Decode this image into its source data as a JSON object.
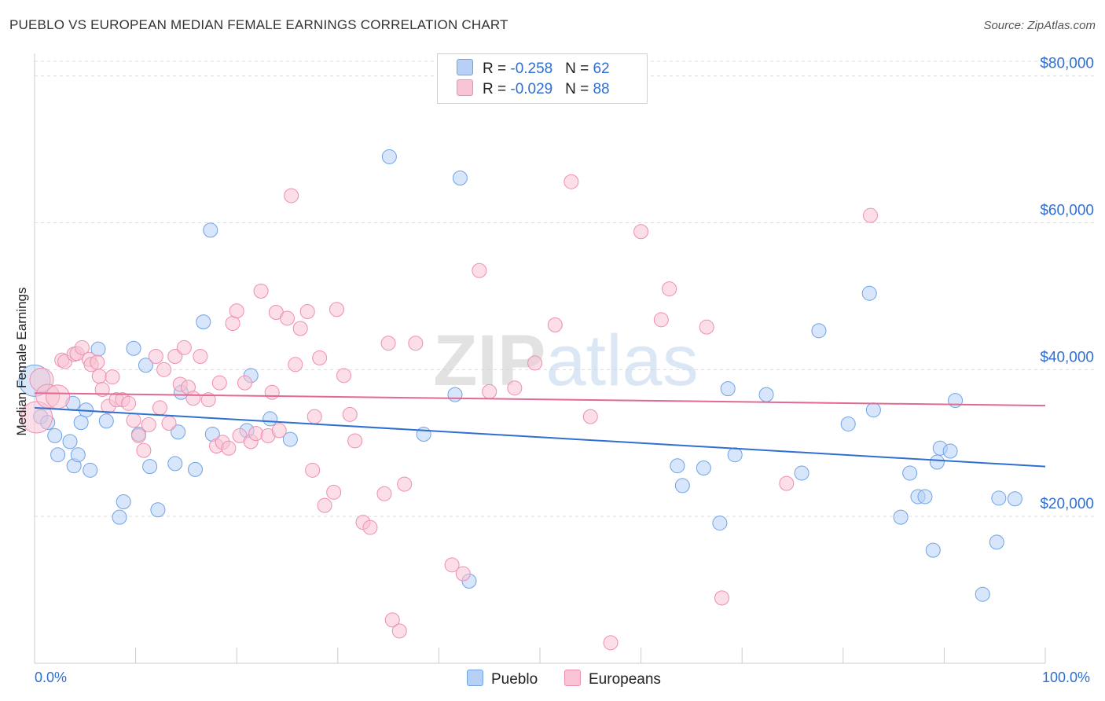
{
  "title": "PUEBLO VS EUROPEAN MEDIAN FEMALE EARNINGS CORRELATION CHART",
  "source": "Source: ZipAtlas.com",
  "watermark": "ZIPatlas",
  "legend": {
    "rows": [
      {
        "r_label": "R = ",
        "r_value": "-0.258",
        "n_label": "N = ",
        "n_value": "62",
        "color": "#b6d1f5"
      },
      {
        "r_label": "R = ",
        "r_value": "-0.029",
        "n_label": "N = ",
        "n_value": "88",
        "color": "#f8c3d4"
      }
    ]
  },
  "bottom_legend": [
    {
      "label": "Pueblo",
      "color": "#b6d1f5"
    },
    {
      "label": "Europeans",
      "color": "#f8c3d4"
    }
  ],
  "chart_data": {
    "type": "scatter",
    "title": "PUEBLO VS EUROPEAN MEDIAN FEMALE EARNINGS CORRELATION CHART",
    "xlabel": "",
    "ylabel": "Median Female Earnings",
    "x_tick_labels": [
      "0.0%",
      "100.0%"
    ],
    "y_tick_labels": [
      "$20,000",
      "$40,000",
      "$60,000",
      "$80,000"
    ],
    "y_ticks": [
      20000,
      40000,
      60000,
      80000
    ],
    "xlim": [
      0,
      100
    ],
    "ylim": [
      0,
      82000
    ],
    "grid": true,
    "legend_position": "top-center",
    "series": [
      {
        "name": "Pueblo",
        "color": "#b6d1f5",
        "stroke": "#6fa3e6",
        "trend_color": "#2f6fd0",
        "trend": [
          [
            0,
            34800
          ],
          [
            100,
            26800
          ]
        ],
        "points": [
          [
            0.0,
            38500
          ],
          [
            0.6,
            33600
          ],
          [
            1.3,
            32800
          ],
          [
            2.0,
            31000
          ],
          [
            2.3,
            28400
          ],
          [
            3.5,
            30200
          ],
          [
            3.8,
            35400
          ],
          [
            3.9,
            26900
          ],
          [
            4.3,
            28400
          ],
          [
            4.6,
            32800
          ],
          [
            5.1,
            34500
          ],
          [
            5.5,
            26300
          ],
          [
            6.3,
            42800
          ],
          [
            7.1,
            33000
          ],
          [
            8.4,
            19900
          ],
          [
            8.8,
            22000
          ],
          [
            9.8,
            42900
          ],
          [
            10.3,
            31200
          ],
          [
            11.0,
            40600
          ],
          [
            11.4,
            26800
          ],
          [
            12.2,
            20900
          ],
          [
            13.9,
            27200
          ],
          [
            14.2,
            31500
          ],
          [
            14.5,
            36900
          ],
          [
            15.9,
            26400
          ],
          [
            16.7,
            46500
          ],
          [
            17.4,
            59000
          ],
          [
            17.6,
            31200
          ],
          [
            21.0,
            31700
          ],
          [
            21.4,
            39200
          ],
          [
            23.3,
            33300
          ],
          [
            25.3,
            30500
          ],
          [
            35.1,
            69000
          ],
          [
            38.5,
            31200
          ],
          [
            41.6,
            36600
          ],
          [
            42.1,
            66100
          ],
          [
            43.0,
            11200
          ],
          [
            63.6,
            26900
          ],
          [
            64.1,
            24200
          ],
          [
            66.2,
            26600
          ],
          [
            67.8,
            19100
          ],
          [
            68.6,
            37400
          ],
          [
            69.3,
            28400
          ],
          [
            72.4,
            36600
          ],
          [
            75.9,
            25900
          ],
          [
            77.6,
            45300
          ],
          [
            80.5,
            32600
          ],
          [
            82.6,
            50400
          ],
          [
            83.0,
            34500
          ],
          [
            85.7,
            19900
          ],
          [
            86.6,
            25900
          ],
          [
            87.4,
            22700
          ],
          [
            88.1,
            22700
          ],
          [
            88.9,
            15400
          ],
          [
            89.3,
            27400
          ],
          [
            89.6,
            29300
          ],
          [
            90.6,
            28900
          ],
          [
            91.1,
            35800
          ],
          [
            93.8,
            9400
          ],
          [
            95.2,
            16500
          ],
          [
            95.4,
            22500
          ],
          [
            97.0,
            22400
          ]
        ]
      },
      {
        "name": "Europeans",
        "color": "#f8c3d4",
        "stroke": "#ee8fae",
        "trend_color": "#e06a92",
        "trend": [
          [
            0,
            36800
          ],
          [
            100,
            35100
          ]
        ],
        "points": [
          [
            0.2,
            33500
          ],
          [
            0.7,
            38600
          ],
          [
            1.3,
            36400
          ],
          [
            2.7,
            41300
          ],
          [
            3.0,
            41100
          ],
          [
            3.9,
            42100
          ],
          [
            4.2,
            42200
          ],
          [
            4.7,
            43000
          ],
          [
            5.4,
            41400
          ],
          [
            5.6,
            40700
          ],
          [
            6.2,
            41000
          ],
          [
            6.4,
            39100
          ],
          [
            6.7,
            37300
          ],
          [
            7.3,
            35000
          ],
          [
            7.7,
            39000
          ],
          [
            8.1,
            35900
          ],
          [
            8.7,
            35900
          ],
          [
            9.3,
            35400
          ],
          [
            9.8,
            33100
          ],
          [
            10.3,
            31000
          ],
          [
            10.8,
            29000
          ],
          [
            11.3,
            32500
          ],
          [
            12.0,
            41800
          ],
          [
            12.4,
            34800
          ],
          [
            12.8,
            40000
          ],
          [
            13.3,
            32700
          ],
          [
            13.9,
            41800
          ],
          [
            14.4,
            38000
          ],
          [
            14.8,
            43000
          ],
          [
            15.2,
            37600
          ],
          [
            15.7,
            36100
          ],
          [
            16.4,
            41800
          ],
          [
            17.2,
            35900
          ],
          [
            18.0,
            29600
          ],
          [
            18.3,
            38200
          ],
          [
            18.6,
            30100
          ],
          [
            19.2,
            29300
          ],
          [
            19.6,
            46300
          ],
          [
            20.0,
            48000
          ],
          [
            20.3,
            31000
          ],
          [
            20.8,
            38200
          ],
          [
            21.4,
            30200
          ],
          [
            21.9,
            31300
          ],
          [
            22.4,
            50700
          ],
          [
            23.1,
            31000
          ],
          [
            23.5,
            36900
          ],
          [
            23.9,
            47800
          ],
          [
            24.2,
            31700
          ],
          [
            25.0,
            47000
          ],
          [
            25.4,
            63700
          ],
          [
            25.8,
            40700
          ],
          [
            26.3,
            45600
          ],
          [
            27.0,
            47900
          ],
          [
            27.5,
            26300
          ],
          [
            27.7,
            33600
          ],
          [
            28.2,
            41600
          ],
          [
            28.7,
            21500
          ],
          [
            29.6,
            23300
          ],
          [
            29.9,
            48200
          ],
          [
            30.6,
            39200
          ],
          [
            31.2,
            33900
          ],
          [
            31.7,
            30300
          ],
          [
            32.5,
            19200
          ],
          [
            33.2,
            18500
          ],
          [
            34.6,
            23100
          ],
          [
            35.0,
            43600
          ],
          [
            35.4,
            5900
          ],
          [
            36.1,
            4400
          ],
          [
            36.6,
            24400
          ],
          [
            37.7,
            43600
          ],
          [
            41.3,
            13400
          ],
          [
            42.4,
            12200
          ],
          [
            44.0,
            53500
          ],
          [
            45.0,
            37000
          ],
          [
            47.5,
            37500
          ],
          [
            49.5,
            40900
          ],
          [
            51.5,
            46100
          ],
          [
            53.1,
            65600
          ],
          [
            55.0,
            33600
          ],
          [
            57.0,
            2800
          ],
          [
            60.0,
            58800
          ],
          [
            62.0,
            46800
          ],
          [
            62.8,
            51000
          ],
          [
            66.5,
            45800
          ],
          [
            68.0,
            8900
          ],
          [
            74.4,
            24500
          ],
          [
            82.7,
            61000
          ],
          [
            2.3,
            36300
          ]
        ]
      }
    ]
  }
}
